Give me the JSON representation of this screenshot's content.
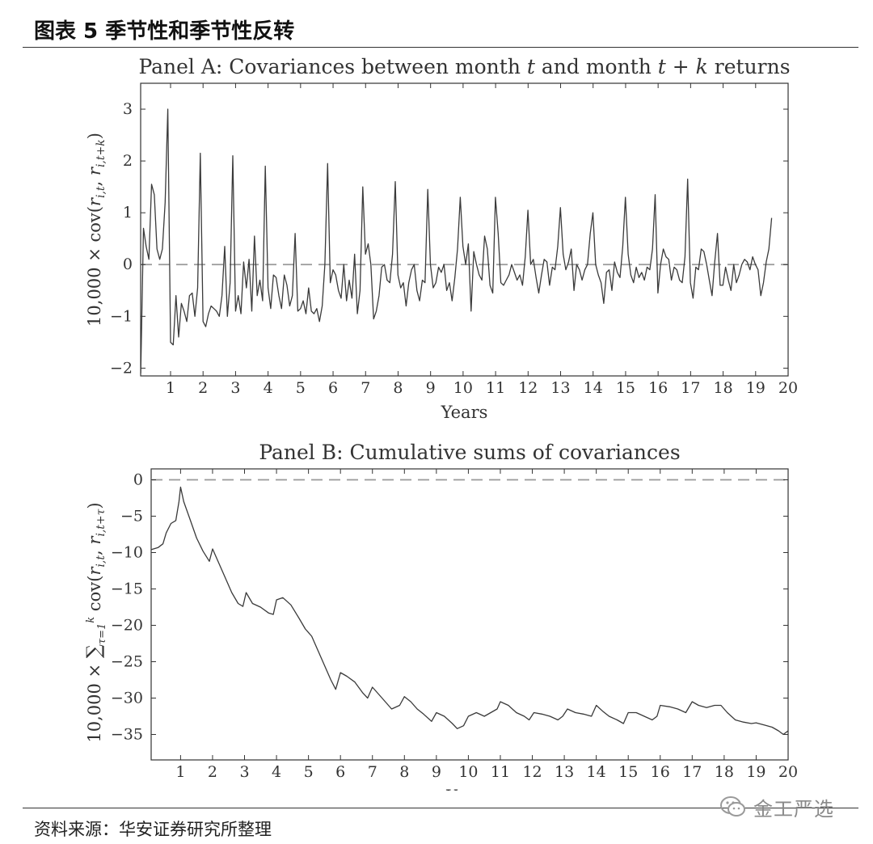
{
  "figure": {
    "title": "图表 5 季节性和季节性反转",
    "source": "资料来源：华安证券研究所整理",
    "watermark": "金工严选"
  },
  "colors": {
    "line": "#3a3a3a",
    "zero_line": "#999999",
    "axis": "#333333"
  },
  "chart_data": [
    {
      "type": "line",
      "title": "Panel A: Covariances between month t and month t + k returns",
      "xlabel": "Years",
      "ylabel": "10,000 × cov(r_{i,t}, r_{i,t+k})",
      "xlim": [
        0.08,
        20
      ],
      "ylim": [
        -2.15,
        3.5
      ],
      "xticks": [
        1,
        2,
        3,
        4,
        5,
        6,
        7,
        8,
        9,
        10,
        11,
        12,
        13,
        14,
        15,
        16,
        17,
        18,
        19,
        20
      ],
      "yticks": [
        -2,
        -1,
        0,
        1,
        2,
        3
      ],
      "zero_line": true,
      "grid": false,
      "series": [
        {
          "x_start": 0.0833,
          "x_step": 0.0833,
          "values": [
            -2.1,
            0.7,
            0.35,
            0.1,
            1.55,
            1.35,
            0.3,
            0.1,
            0.3,
            1.2,
            3.0,
            -1.5,
            -1.55,
            -0.6,
            -1.4,
            -0.75,
            -0.9,
            -1.1,
            -0.6,
            -0.55,
            -1.0,
            -0.45,
            2.15,
            -1.1,
            -1.2,
            -0.95,
            -0.8,
            -0.85,
            -0.9,
            -1.0,
            -0.6,
            0.35,
            -1.0,
            -0.35,
            2.1,
            -0.9,
            -0.6,
            -0.95,
            0.05,
            -0.45,
            0.1,
            -0.9,
            0.55,
            -0.6,
            -0.3,
            -0.7,
            1.9,
            -0.45,
            -0.85,
            -0.2,
            -0.25,
            -0.6,
            -0.85,
            -0.2,
            -0.4,
            -0.8,
            -0.6,
            0.6,
            -0.9,
            -0.85,
            -0.7,
            -0.95,
            -0.45,
            -0.9,
            -0.95,
            -0.85,
            -1.1,
            -0.8,
            0.0,
            1.95,
            -0.35,
            -0.1,
            -0.2,
            -0.5,
            -0.65,
            0.0,
            -0.7,
            -0.3,
            -0.65,
            0.2,
            -0.95,
            -0.5,
            1.5,
            0.2,
            0.4,
            0.0,
            -1.05,
            -0.9,
            -0.6,
            -0.05,
            0.0,
            -0.3,
            -0.35,
            0.2,
            1.6,
            -0.2,
            -0.45,
            -0.35,
            -0.8,
            -0.35,
            -0.1,
            0.0,
            -0.5,
            -0.7,
            -0.3,
            -0.35,
            1.45,
            0.0,
            -0.45,
            -0.35,
            -0.05,
            -0.15,
            0.0,
            -0.5,
            -0.35,
            -0.7,
            -0.25,
            0.3,
            1.3,
            0.35,
            0.0,
            0.4,
            -0.9,
            0.25,
            0.0,
            -0.2,
            -0.3,
            0.55,
            0.3,
            -0.4,
            -0.55,
            1.3,
            0.6,
            -0.35,
            -0.4,
            -0.3,
            -0.2,
            0.0,
            -0.15,
            -0.3,
            -0.2,
            -0.4,
            0.15,
            1.05,
            0.0,
            0.1,
            -0.25,
            -0.55,
            -0.2,
            0.1,
            0.05,
            -0.4,
            -0.05,
            -0.1,
            0.35,
            1.1,
            0.2,
            -0.1,
            0.05,
            0.3,
            -0.5,
            0.0,
            -0.1,
            -0.3,
            -0.1,
            0.0,
            0.6,
            1.0,
            0.0,
            -0.2,
            -0.35,
            -0.75,
            -0.15,
            -0.1,
            -0.5,
            0.05,
            -0.15,
            -0.25,
            0.35,
            1.3,
            0.2,
            -0.2,
            -0.35,
            -0.05,
            -0.25,
            -0.15,
            -0.3,
            -0.05,
            -0.1,
            0.3,
            1.35,
            -0.55,
            0.0,
            0.3,
            0.15,
            0.1,
            -0.3,
            -0.05,
            -0.1,
            -0.3,
            -0.35,
            0.15,
            1.65,
            -0.35,
            -0.65,
            -0.05,
            -0.1,
            0.3,
            0.25,
            0.0,
            -0.3,
            -0.6,
            0.05,
            0.6,
            -0.4,
            -0.4,
            -0.05,
            -0.3,
            -0.5,
            0.0,
            -0.35,
            -0.2,
            0.0,
            0.1,
            0.05,
            -0.1,
            0.15,
            0.0,
            -0.1,
            -0.6,
            -0.35,
            0.05,
            0.3,
            0.9
          ]
        }
      ]
    },
    {
      "type": "line",
      "title": "Panel B: Cumulative sums of covariances",
      "xlabel": "Years",
      "ylabel": "10,000 × Σ_{τ=1}^{k} cov(r_{i,t}, r_{i,t+τ})",
      "xlim": [
        0.08,
        20
      ],
      "ylim": [
        -38.5,
        1.5
      ],
      "xticks": [
        1,
        2,
        3,
        4,
        5,
        6,
        7,
        8,
        9,
        10,
        11,
        12,
        13,
        14,
        15,
        16,
        17,
        18,
        19,
        20
      ],
      "yticks": [
        0,
        -5,
        -10,
        -15,
        -20,
        -25,
        -30,
        -35
      ],
      "zero_line": true,
      "grid": false,
      "series": [
        {
          "points": [
            [
              0.08,
              -9.6
            ],
            [
              0.3,
              -9.3
            ],
            [
              0.45,
              -8.8
            ],
            [
              0.55,
              -7.3
            ],
            [
              0.7,
              -6.0
            ],
            [
              0.85,
              -5.6
            ],
            [
              0.95,
              -3.0
            ],
            [
              1.0,
              -1.0
            ],
            [
              1.1,
              -3.0
            ],
            [
              1.3,
              -5.5
            ],
            [
              1.5,
              -8.0
            ],
            [
              1.7,
              -9.8
            ],
            [
              1.9,
              -11.2
            ],
            [
              2.0,
              -9.5
            ],
            [
              2.2,
              -11.5
            ],
            [
              2.45,
              -14.0
            ],
            [
              2.6,
              -15.5
            ],
            [
              2.8,
              -17.0
            ],
            [
              2.95,
              -17.4
            ],
            [
              3.05,
              -15.5
            ],
            [
              3.25,
              -17.0
            ],
            [
              3.5,
              -17.5
            ],
            [
              3.75,
              -18.3
            ],
            [
              3.9,
              -18.5
            ],
            [
              4.0,
              -16.5
            ],
            [
              4.2,
              -16.2
            ],
            [
              4.45,
              -17.2
            ],
            [
              4.7,
              -19.0
            ],
            [
              4.9,
              -20.5
            ],
            [
              5.1,
              -21.5
            ],
            [
              5.3,
              -23.5
            ],
            [
              5.5,
              -25.5
            ],
            [
              5.7,
              -27.5
            ],
            [
              5.85,
              -28.8
            ],
            [
              6.0,
              -26.5
            ],
            [
              6.2,
              -27.0
            ],
            [
              6.45,
              -27.8
            ],
            [
              6.7,
              -29.3
            ],
            [
              6.85,
              -30.0
            ],
            [
              7.0,
              -28.5
            ],
            [
              7.2,
              -29.5
            ],
            [
              7.4,
              -30.5
            ],
            [
              7.6,
              -31.5
            ],
            [
              7.85,
              -31.0
            ],
            [
              8.0,
              -29.8
            ],
            [
              8.2,
              -30.5
            ],
            [
              8.4,
              -31.5
            ],
            [
              8.6,
              -32.2
            ],
            [
              8.85,
              -33.2
            ],
            [
              9.0,
              -32.0
            ],
            [
              9.25,
              -32.5
            ],
            [
              9.5,
              -33.5
            ],
            [
              9.65,
              -34.2
            ],
            [
              9.85,
              -33.8
            ],
            [
              10.0,
              -32.5
            ],
            [
              10.25,
              -32.0
            ],
            [
              10.5,
              -32.5
            ],
            [
              10.7,
              -32.0
            ],
            [
              10.9,
              -31.5
            ],
            [
              11.0,
              -30.5
            ],
            [
              11.25,
              -31.0
            ],
            [
              11.5,
              -32.0
            ],
            [
              11.75,
              -32.5
            ],
            [
              11.9,
              -33.0
            ],
            [
              12.05,
              -32.0
            ],
            [
              12.3,
              -32.2
            ],
            [
              12.55,
              -32.5
            ],
            [
              12.8,
              -33.0
            ],
            [
              12.95,
              -32.5
            ],
            [
              13.1,
              -31.5
            ],
            [
              13.35,
              -32.0
            ],
            [
              13.6,
              -32.2
            ],
            [
              13.85,
              -32.5
            ],
            [
              14.0,
              -31.0
            ],
            [
              14.2,
              -31.8
            ],
            [
              14.4,
              -32.5
            ],
            [
              14.65,
              -33.0
            ],
            [
              14.85,
              -33.5
            ],
            [
              15.0,
              -32.0
            ],
            [
              15.25,
              -32.0
            ],
            [
              15.5,
              -32.5
            ],
            [
              15.75,
              -33.0
            ],
            [
              15.9,
              -32.5
            ],
            [
              16.0,
              -31.0
            ],
            [
              16.3,
              -31.2
            ],
            [
              16.55,
              -31.5
            ],
            [
              16.8,
              -32.0
            ],
            [
              17.0,
              -30.5
            ],
            [
              17.2,
              -31.0
            ],
            [
              17.45,
              -31.3
            ],
            [
              17.7,
              -31.0
            ],
            [
              17.9,
              -31.0
            ],
            [
              18.1,
              -32.0
            ],
            [
              18.35,
              -33.0
            ],
            [
              18.6,
              -33.3
            ],
            [
              18.85,
              -33.5
            ],
            [
              19.0,
              -33.4
            ],
            [
              19.25,
              -33.7
            ],
            [
              19.5,
              -34.0
            ],
            [
              19.7,
              -34.5
            ],
            [
              19.85,
              -35.0
            ],
            [
              20.0,
              -34.5
            ]
          ]
        }
      ]
    }
  ]
}
